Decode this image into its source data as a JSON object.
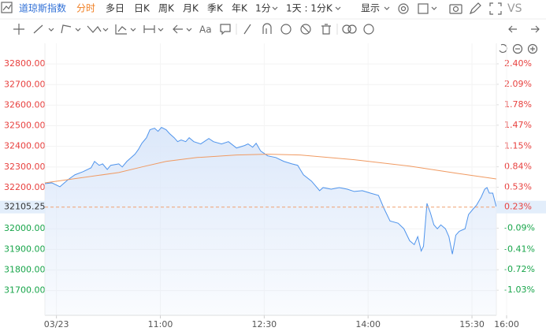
{
  "toolbar": {
    "symbol": "道琼斯指数",
    "tabs": [
      "分时",
      "多日",
      "日K",
      "周K",
      "月K",
      "季K",
      "年K"
    ],
    "interval": "1分",
    "range": "1天 : 1分K",
    "display": "显示",
    "compare": "VS",
    "text_tool": "Aa"
  },
  "chart_data": {
    "type": "line",
    "xlim": [
      -10,
      390
    ],
    "xticks": [
      {
        "value": 0,
        "label": "03/23"
      },
      {
        "value": 90,
        "label": "11:00"
      },
      {
        "value": 180,
        "label": "12:30"
      },
      {
        "value": 270,
        "label": "14:00"
      },
      {
        "value": 360,
        "label": "15:30"
      },
      {
        "value": 390,
        "label": "16:00"
      }
    ],
    "ylim": [
      31580,
      32900
    ],
    "yticks": [
      {
        "value": 32800,
        "label": "32800.00"
      },
      {
        "value": 32700,
        "label": "32700.00"
      },
      {
        "value": 32600,
        "label": "32600.00"
      },
      {
        "value": 32500,
        "label": "32500.00"
      },
      {
        "value": 32400,
        "label": "32400.00"
      },
      {
        "value": 32300,
        "label": "32300.00"
      },
      {
        "value": 32200,
        "label": "32200.00"
      },
      {
        "value": 32000,
        "label": "32000.00"
      },
      {
        "value": 31900,
        "label": "31900.00"
      },
      {
        "value": 31800,
        "label": "31800.00"
      },
      {
        "value": 31700,
        "label": "31700.00"
      }
    ],
    "y2lim": [
      -1.41,
      2.71
    ],
    "y2ticks": [
      {
        "value": 2.4,
        "label": "2.40%"
      },
      {
        "value": 2.09,
        "label": "2.09%"
      },
      {
        "value": 1.78,
        "label": "1.78%"
      },
      {
        "value": 1.47,
        "label": "1.47%"
      },
      {
        "value": 1.15,
        "label": "1.15%"
      },
      {
        "value": 0.84,
        "label": "0.84%"
      },
      {
        "value": 0.53,
        "label": "0.53%"
      },
      {
        "value": -0.09,
        "label": "-0.09%"
      },
      {
        "value": -0.41,
        "label": "-0.41%"
      },
      {
        "value": -0.72,
        "label": "-0.72%"
      },
      {
        "value": -1.03,
        "label": "-1.03%"
      }
    ],
    "current_price": 32105.25,
    "current_change": {
      "value": 0.23,
      "label": "0.23%"
    },
    "grid": true,
    "up_color": "#e8413f",
    "down_color": "#18a54a",
    "series": [
      {
        "color": "#4f94ec",
        "fill": "#dce8fa",
        "x": [
          -10,
          -4,
          3,
          10,
          16,
          23,
          30,
          33,
          37,
          40,
          44,
          47,
          54,
          57,
          61,
          68,
          71,
          74,
          78,
          81,
          85,
          88,
          91,
          95,
          98,
          102,
          105,
          108,
          112,
          115,
          119,
          125,
          132,
          136,
          143,
          149,
          156,
          163,
          166,
          170,
          173,
          177,
          183,
          190,
          197,
          204,
          209,
          214,
          221,
          228,
          231,
          238,
          245,
          252,
          258,
          265,
          272,
          279,
          284,
          289,
          296,
          301,
          306,
          310,
          313,
          316,
          318,
          321,
          324,
          327,
          330,
          333,
          337,
          340,
          343,
          346,
          349,
          354,
          357,
          361,
          364,
          368,
          371,
          373,
          375,
          378,
          381
        ],
        "values": [
          32219,
          32223,
          32204,
          32238,
          32262,
          32277,
          32296,
          32327,
          32308,
          32315,
          32288,
          32308,
          32315,
          32300,
          32327,
          32362,
          32385,
          32415,
          32442,
          32481,
          32488,
          32473,
          32492,
          32481,
          32462,
          32442,
          32423,
          32431,
          32423,
          32442,
          32423,
          32412,
          32438,
          32423,
          32412,
          32423,
          32392,
          32404,
          32412,
          32396,
          32415,
          32377,
          32354,
          32346,
          32327,
          32315,
          32308,
          32262,
          32231,
          32185,
          32200,
          32192,
          32200,
          32192,
          32181,
          32185,
          32173,
          32162,
          32096,
          32038,
          32027,
          32000,
          31942,
          31923,
          31962,
          31892,
          31915,
          32123,
          32077,
          32019,
          32000,
          32019,
          32000,
          31962,
          31877,
          31969,
          31988,
          32000,
          32069,
          32096,
          32115,
          32154,
          32192,
          32200,
          32173,
          32173,
          32108
        ]
      },
      {
        "color": "#f09a62",
        "x": [
          -10,
          54,
          74,
          95,
          122,
          156,
          183,
          211,
          258,
          306,
          347,
          381
        ],
        "values": [
          32223,
          32273,
          32300,
          32327,
          32346,
          32358,
          32362,
          32358,
          32335,
          32304,
          32269,
          32242
        ]
      }
    ]
  }
}
